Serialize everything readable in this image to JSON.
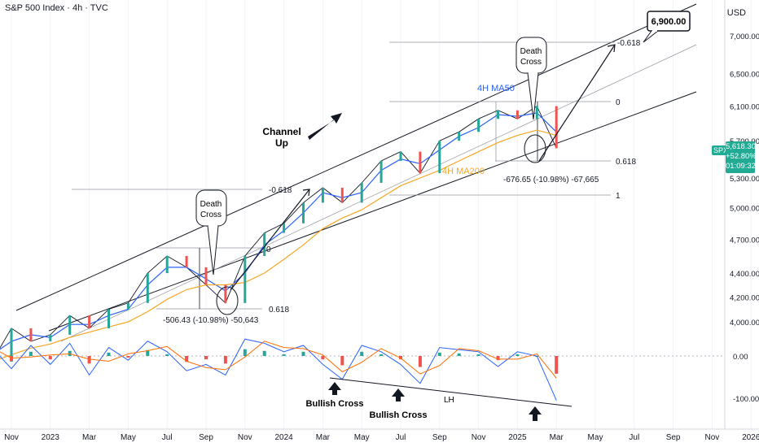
{
  "header": {
    "title": "S&P 500 Index · 4h · TVC",
    "currency": "USD"
  },
  "price_tag": {
    "symbol": "SPX",
    "price": "5,618.30",
    "change": "+52.80%",
    "countdown": "01:09:32"
  },
  "chart_data": [
    {
      "type": "line",
      "title": "S&P 500 Index · 4h · TVC",
      "x_ticks": [
        "Nov",
        "2023",
        "Mar",
        "May",
        "Jul",
        "Sep",
        "Nov",
        "2024",
        "Mar",
        "May",
        "Jul",
        "Sep",
        "Nov",
        "2025",
        "Mar",
        "May",
        "Jul",
        "Sep",
        "Nov",
        "2026"
      ],
      "y_ticks": [
        "7,000.00",
        "6,500.00",
        "6,100.00",
        "5,700.00",
        "5,300.00",
        "5,000.00",
        "4,700.00",
        "4,400.00",
        "4,200.00",
        "4,000.00"
      ],
      "y_scale": "log",
      "y_unit": "USD",
      "x": [
        "2022-10",
        "2022-11",
        "2022-12",
        "2023-01",
        "2023-02",
        "2023-03",
        "2023-04",
        "2023-05",
        "2023-06",
        "2023-07",
        "2023-08",
        "2023-09",
        "2023-10",
        "2023-11",
        "2023-12",
        "2024-01",
        "2024-02",
        "2024-03",
        "2024-04",
        "2024-05",
        "2024-06",
        "2024-07",
        "2024-08",
        "2024-09",
        "2024-10",
        "2024-11",
        "2024-12",
        "2025-01",
        "2025-02",
        "2025-03"
      ],
      "series": [
        {
          "values": [
            3700,
            3950,
            3850,
            3900,
            4050,
            3950,
            4100,
            4150,
            4400,
            4550,
            4450,
            4300,
            4150,
            4550,
            4760,
            4850,
            5050,
            5200,
            5050,
            5250,
            5480,
            5580,
            5350,
            5700,
            5800,
            5950,
            6050,
            5950,
            6100,
            5618
          ]
        },
        {
          "name": "4H MA50",
          "values": [
            3750,
            3850,
            3900,
            3880,
            3980,
            3980,
            4050,
            4100,
            4300,
            4450,
            4450,
            4350,
            4250,
            4400,
            4650,
            4780,
            4950,
            5150,
            5100,
            5150,
            5380,
            5500,
            5450,
            5600,
            5750,
            5850,
            6000,
            5980,
            6020,
            5800
          ]
        },
        {
          "name": "4H MA200",
          "values": [
            3700,
            3750,
            3800,
            3830,
            3880,
            3920,
            3960,
            4000,
            4080,
            4180,
            4260,
            4300,
            4300,
            4320,
            4400,
            4520,
            4650,
            4800,
            4900,
            4980,
            5100,
            5220,
            5300,
            5380,
            5480,
            5580,
            5680,
            5760,
            5820,
            5760
          ]
        }
      ],
      "annotations": {
        "target": "6,900.00",
        "death_cross": "Death\nCross",
        "channel": "Channel\nUp",
        "ma50_label": "4H MA50",
        "ma200_label": "4H MA200",
        "fib_2023": [
          "-0.618",
          "0",
          "0.618"
        ],
        "fib_2025": [
          "-0.618",
          "0",
          "0.618",
          "1"
        ],
        "drop_2023": "-506.43 (-10.98%) -50,643",
        "drop_2025": "-676.65 (-10.98%) -67,665"
      },
      "colors": {
        "ma50": "#2962ff",
        "ma200": "#f5a623",
        "up": "#26a69a",
        "down": "#ef5350"
      }
    },
    {
      "type": "line",
      "y_ticks": [
        "0.00",
        "-100.00"
      ],
      "annotations": {
        "bullish_cross": "Bullish Cross",
        "lh": "LH"
      },
      "x": [
        "2022-10",
        "2022-11",
        "2022-12",
        "2023-01",
        "2023-02",
        "2023-03",
        "2023-04",
        "2023-05",
        "2023-06",
        "2023-07",
        "2023-08",
        "2023-09",
        "2023-10",
        "2023-11",
        "2023-12",
        "2024-01",
        "2024-02",
        "2024-03",
        "2024-04",
        "2024-05",
        "2024-06",
        "2024-07",
        "2024-08",
        "2024-09",
        "2024-10",
        "2024-11",
        "2024-12",
        "2025-01",
        "2025-02",
        "2025-03"
      ],
      "series": [
        {
          "values": [
            20,
            -30,
            25,
            -20,
            30,
            -45,
            20,
            -10,
            35,
            10,
            -35,
            -20,
            -45,
            40,
            30,
            10,
            25,
            -20,
            -55,
            25,
            10,
            -20,
            -65,
            20,
            15,
            10,
            -25,
            10,
            0,
            -105
          ]
        }
      ]
    }
  ]
}
